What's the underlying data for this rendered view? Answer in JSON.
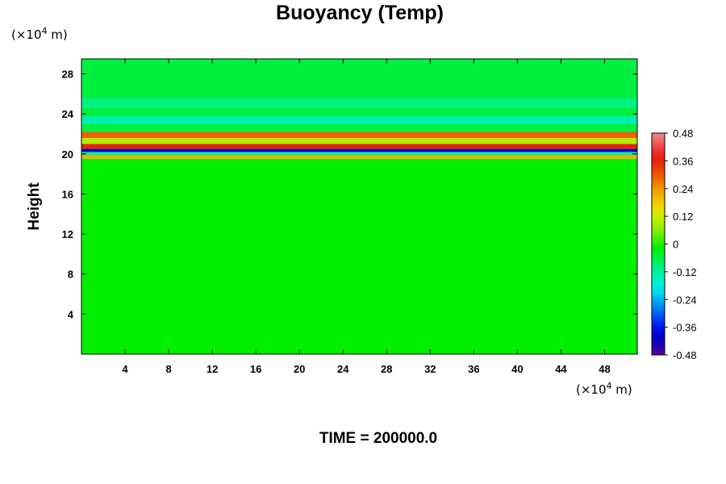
{
  "chart_data": {
    "type": "heatmap",
    "title": "Buoyancy (Temp)",
    "xlabel": "",
    "ylabel": "Height",
    "x_unit": "(×10",
    "x_unit_exp": "4",
    "x_unit_suffix": " m)",
    "y_unit": "(×10",
    "y_unit_exp": "4",
    "y_unit_suffix": " m)",
    "xlim": [
      0,
      51
    ],
    "ylim": [
      0,
      29.5
    ],
    "x_ticks": [
      4,
      8,
      12,
      16,
      20,
      24,
      28,
      32,
      36,
      40,
      44,
      48
    ],
    "y_ticks": [
      4,
      8,
      12,
      16,
      20,
      24,
      28
    ],
    "colorbar": {
      "min": -0.48,
      "max": 0.48,
      "tick_labels": [
        "0.48",
        "0.36",
        "0.24",
        "0.12",
        "0",
        "-0.12",
        "-0.24",
        "-0.36",
        "-0.48"
      ],
      "tick_values": [
        0.48,
        0.36,
        0.24,
        0.12,
        0,
        -0.12,
        -0.24,
        -0.36,
        -0.48
      ],
      "colors": [
        "#f08888",
        "#f06060",
        "#f03030",
        "#e82010",
        "#e84000",
        "#f06000",
        "#f09000",
        "#f0b000",
        "#f0d000",
        "#d8e800",
        "#b0f000",
        "#80f000",
        "#40f000",
        "#00f000",
        "#00f040",
        "#00f080",
        "#00f0b0",
        "#00f0d8",
        "#00d8f0",
        "#00a8f0",
        "#0070f0",
        "#0040f0",
        "#0010e8",
        "#0000c8",
        "#2000b0",
        "#6000a0"
      ]
    },
    "field_bands": [
      {
        "y_range": [
          0,
          19.5
        ],
        "value": 0.0
      },
      {
        "y_range": [
          19.5,
          19.9
        ],
        "value": 0.2
      },
      {
        "y_range": [
          19.9,
          20.2
        ],
        "value": -0.12
      },
      {
        "y_range": [
          20.2,
          20.5
        ],
        "value": -0.42
      },
      {
        "y_range": [
          20.5,
          21.0
        ],
        "value": 0.36
      },
      {
        "y_range": [
          21.0,
          21.6
        ],
        "value": 0.1
      },
      {
        "y_range": [
          21.6,
          22.2
        ],
        "value": 0.3
      },
      {
        "y_range": [
          22.2,
          23.0
        ],
        "value": -0.05
      },
      {
        "y_range": [
          23.0,
          23.8
        ],
        "value": -0.12
      },
      {
        "y_range": [
          23.8,
          24.6
        ],
        "value": -0.06
      },
      {
        "y_range": [
          24.6,
          25.6
        ],
        "value": -0.1
      },
      {
        "y_range": [
          25.6,
          29.5
        ],
        "value": -0.04
      }
    ]
  },
  "footer": {
    "time_label": "TIME = 200000.0"
  },
  "colors": {
    "frame": "#000000"
  }
}
